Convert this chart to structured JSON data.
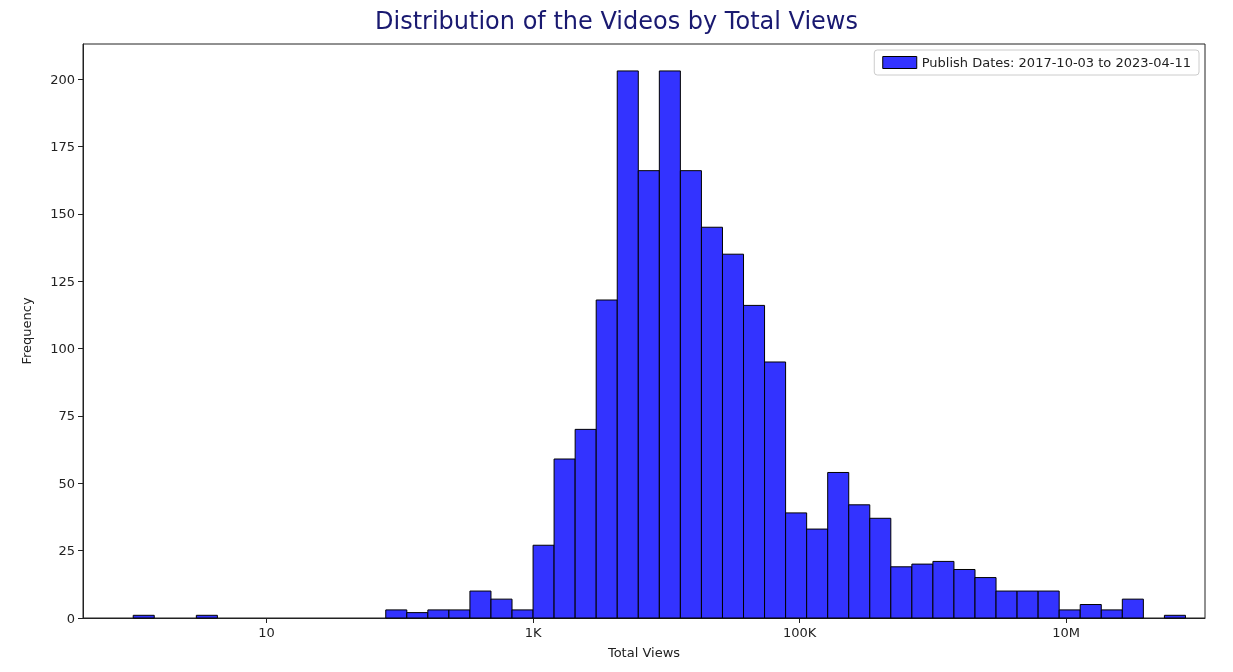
{
  "chart_data": {
    "type": "histogram",
    "title": "Distribution of the Videos by Total Views",
    "xlabel": "Total Views",
    "ylabel": "Frequency",
    "bins": [
      1,
      1.438,
      2.069,
      2.976,
      4.281,
      6.158,
      8.859,
      12.74,
      18.33,
      26.37,
      37.93,
      54.56,
      78.48,
      112.9,
      162.4,
      233.6,
      336.0,
      483.3,
      695.2,
      1000,
      1438,
      2069,
      2976,
      4281,
      6158,
      8859,
      12740,
      18330,
      26370,
      37930,
      54560,
      78480,
      112900,
      162400,
      233600,
      336000,
      483300,
      695200,
      1000000,
      1438000,
      2069000,
      2976000,
      4281000,
      6158000,
      8859000,
      12740000,
      18330000,
      26370000,
      37930000,
      54560000,
      78480000
    ],
    "series": [
      {
        "name": "Publish Dates: 2017-10-03 to 2023-04-11",
        "color": "#3333ff",
        "values": [
          1,
          0,
          0,
          1,
          0,
          0,
          0,
          0,
          0,
          0,
          0,
          0,
          3,
          2,
          3,
          3,
          10,
          7,
          3,
          27,
          59,
          70,
          118,
          203,
          166,
          203,
          166,
          145,
          135,
          116,
          95,
          39,
          33,
          54,
          42,
          37,
          19,
          20,
          21,
          18,
          15,
          10,
          10,
          10,
          3,
          5,
          3,
          7,
          0,
          1
        ]
      }
    ],
    "log": "x",
    "xlim": [
      0.42,
      110000000
    ],
    "xticks": [
      {
        "value": 10,
        "label": "10"
      },
      {
        "value": 1000,
        "label": "1K"
      },
      {
        "value": 100000,
        "label": "100K"
      },
      {
        "value": 10000000,
        "label": "10M"
      }
    ],
    "ylim": [
      0,
      213
    ],
    "yticks": [
      0,
      25,
      50,
      75,
      100,
      125,
      150,
      175,
      200
    ],
    "grid": false,
    "legend": "top right"
  }
}
